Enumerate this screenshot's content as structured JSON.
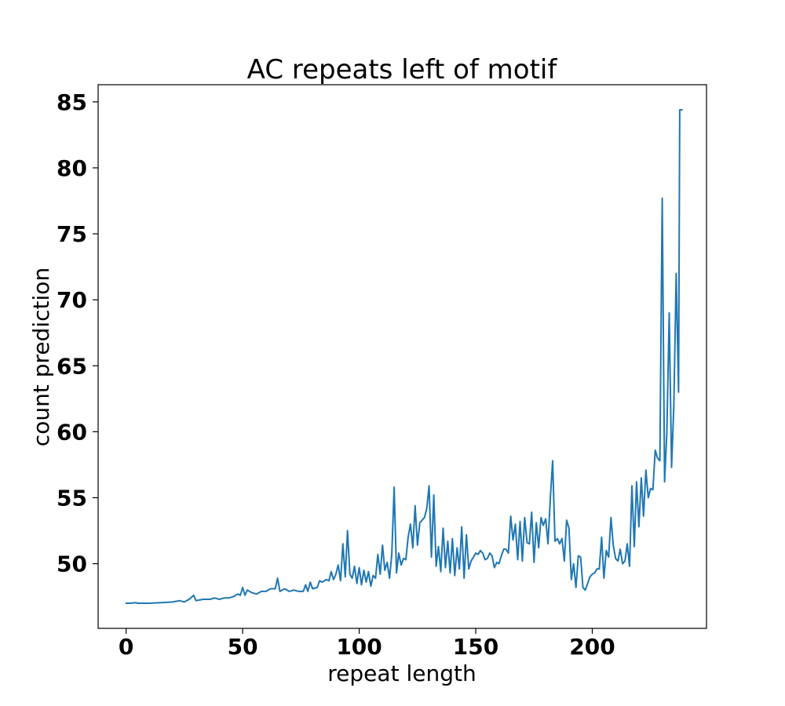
{
  "chart_data": {
    "type": "line",
    "title": "AC repeats left of motif",
    "xlabel": "repeat length",
    "ylabel": "count prediction",
    "xlim": [
      -12,
      249
    ],
    "ylim": [
      45.1,
      86.3
    ],
    "xticks": [
      0,
      50,
      100,
      150,
      200
    ],
    "yticks": [
      50,
      55,
      60,
      65,
      70,
      75,
      80,
      85
    ],
    "grid": false,
    "legend": "none",
    "series": [
      {
        "color": "#1f77b4",
        "points": [
          [
            0,
            47.0
          ],
          [
            2,
            47.0
          ],
          [
            4,
            47.05
          ],
          [
            5,
            47.0
          ],
          [
            7,
            47.0
          ],
          [
            10,
            47.0
          ],
          [
            15,
            47.05
          ],
          [
            20,
            47.1
          ],
          [
            23,
            47.2
          ],
          [
            25,
            47.1
          ],
          [
            27,
            47.3
          ],
          [
            29,
            47.6
          ],
          [
            30,
            47.2
          ],
          [
            33,
            47.3
          ],
          [
            36,
            47.3
          ],
          [
            38,
            47.4
          ],
          [
            40,
            47.3
          ],
          [
            42,
            47.4
          ],
          [
            44,
            47.4
          ],
          [
            46,
            47.5
          ],
          [
            48,
            47.7
          ],
          [
            49,
            47.6
          ],
          [
            50,
            48.2
          ],
          [
            51,
            47.6
          ],
          [
            52,
            48.0
          ],
          [
            54,
            47.8
          ],
          [
            56,
            47.7
          ],
          [
            58,
            47.9
          ],
          [
            60,
            47.9
          ],
          [
            62,
            48.1
          ],
          [
            64,
            48.1
          ],
          [
            65,
            48.9
          ],
          [
            66,
            47.9
          ],
          [
            68,
            48.1
          ],
          [
            70,
            47.9
          ],
          [
            72,
            48.0
          ],
          [
            74,
            47.9
          ],
          [
            76,
            47.9
          ],
          [
            77,
            48.4
          ],
          [
            78,
            47.9
          ],
          [
            79,
            48.6
          ],
          [
            80,
            48.1
          ],
          [
            82,
            48.2
          ],
          [
            83,
            48.7
          ],
          [
            84,
            48.6
          ],
          [
            86,
            48.8
          ],
          [
            87,
            48.7
          ],
          [
            88,
            49.4
          ],
          [
            89,
            48.8
          ],
          [
            90,
            49.2
          ],
          [
            91,
            49.9
          ],
          [
            92,
            48.7
          ],
          [
            93,
            51.5
          ],
          [
            94,
            49.0
          ],
          [
            95,
            52.5
          ],
          [
            96,
            49.2
          ],
          [
            97,
            48.9
          ],
          [
            98,
            49.8
          ],
          [
            99,
            48.5
          ],
          [
            100,
            49.7
          ],
          [
            101,
            48.4
          ],
          [
            102,
            49.5
          ],
          [
            103,
            48.6
          ],
          [
            104,
            49.4
          ],
          [
            105,
            48.3
          ],
          [
            106,
            49.1
          ],
          [
            107,
            48.9
          ],
          [
            108,
            50.7
          ],
          [
            109,
            49.2
          ],
          [
            110,
            51.4
          ],
          [
            111,
            49.5
          ],
          [
            112,
            50.1
          ],
          [
            113,
            48.9
          ],
          [
            114,
            50.7
          ],
          [
            115,
            55.8
          ],
          [
            116,
            49.3
          ],
          [
            117,
            50.8
          ],
          [
            118,
            49.9
          ],
          [
            119,
            50.4
          ],
          [
            120,
            50.3
          ],
          [
            121,
            52.0
          ],
          [
            122,
            53.0
          ],
          [
            123,
            51.2
          ],
          [
            124,
            54.4
          ],
          [
            125,
            51.4
          ],
          [
            126,
            53.1
          ],
          [
            127,
            53.3
          ],
          [
            128,
            53.5
          ],
          [
            129,
            54.2
          ],
          [
            130,
            55.9
          ],
          [
            131,
            50.5
          ],
          [
            132,
            55.2
          ],
          [
            133,
            49.8
          ],
          [
            134,
            51.3
          ],
          [
            135,
            49.4
          ],
          [
            136,
            52.7
          ],
          [
            137,
            49.7
          ],
          [
            138,
            51.7
          ],
          [
            139,
            49.3
          ],
          [
            140,
            51.9
          ],
          [
            141,
            49.1
          ],
          [
            142,
            51.2
          ],
          [
            143,
            49.6
          ],
          [
            144,
            52.8
          ],
          [
            145,
            48.9
          ],
          [
            146,
            52.2
          ],
          [
            147,
            49.6
          ],
          [
            148,
            50.2
          ],
          [
            149,
            50.5
          ],
          [
            150,
            50.8
          ],
          [
            151,
            50.7
          ],
          [
            152,
            51.0
          ],
          [
            153,
            50.8
          ],
          [
            154,
            50.3
          ],
          [
            155,
            50.4
          ],
          [
            156,
            50.8
          ],
          [
            157,
            50.6
          ],
          [
            158,
            49.7
          ],
          [
            159,
            50.1
          ],
          [
            160,
            50.0
          ],
          [
            161,
            50.6
          ],
          [
            162,
            51.1
          ],
          [
            163,
            51.1
          ],
          [
            164,
            50.8
          ],
          [
            165,
            53.6
          ],
          [
            166,
            51.8
          ],
          [
            167,
            53.0
          ],
          [
            168,
            50.3
          ],
          [
            169,
            53.2
          ],
          [
            170,
            50.2
          ],
          [
            171,
            53.5
          ],
          [
            172,
            51.6
          ],
          [
            173,
            51.5
          ],
          [
            174,
            53.9
          ],
          [
            175,
            50.1
          ],
          [
            176,
            53.1
          ],
          [
            177,
            51.2
          ],
          [
            178,
            53.5
          ],
          [
            179,
            52.9
          ],
          [
            180,
            53.4
          ],
          [
            181,
            51.5
          ],
          [
            182,
            55.0
          ],
          [
            183,
            57.8
          ],
          [
            184,
            51.7
          ],
          [
            185,
            51.9
          ],
          [
            186,
            51.5
          ],
          [
            187,
            51.9
          ],
          [
            188,
            50.2
          ],
          [
            189,
            53.3
          ],
          [
            190,
            52.7
          ],
          [
            191,
            48.8
          ],
          [
            192,
            50.0
          ],
          [
            193,
            48.2
          ],
          [
            194,
            50.6
          ],
          [
            195,
            50.5
          ],
          [
            196,
            48.2
          ],
          [
            197,
            48.0
          ],
          [
            198,
            48.5
          ],
          [
            199,
            49.0
          ],
          [
            200,
            49.2
          ],
          [
            201,
            49.3
          ],
          [
            202,
            49.6
          ],
          [
            203,
            49.6
          ],
          [
            204,
            52.0
          ],
          [
            205,
            48.9
          ],
          [
            206,
            51.0
          ],
          [
            207,
            50.5
          ],
          [
            208,
            53.5
          ],
          [
            209,
            51.4
          ],
          [
            210,
            50.4
          ],
          [
            211,
            50.2
          ],
          [
            212,
            51.1
          ],
          [
            213,
            50.0
          ],
          [
            214,
            50.2
          ],
          [
            215,
            51.5
          ],
          [
            216,
            49.8
          ],
          [
            217,
            55.9
          ],
          [
            218,
            51.3
          ],
          [
            219,
            56.2
          ],
          [
            220,
            52.8
          ],
          [
            221,
            56.5
          ],
          [
            222,
            53.6
          ],
          [
            223,
            57.1
          ],
          [
            224,
            55.0
          ],
          [
            225,
            55.7
          ],
          [
            226,
            55.6
          ],
          [
            227,
            58.6
          ],
          [
            228,
            58.0
          ],
          [
            229,
            57.8
          ],
          [
            230,
            77.7
          ],
          [
            231,
            56.2
          ],
          [
            232,
            60.0
          ],
          [
            233,
            69.0
          ],
          [
            234,
            57.3
          ],
          [
            235,
            62.0
          ],
          [
            236,
            72.0
          ],
          [
            237,
            63.0
          ],
          [
            237.5,
            84.4
          ],
          [
            238.5,
            84.4
          ]
        ]
      }
    ]
  }
}
